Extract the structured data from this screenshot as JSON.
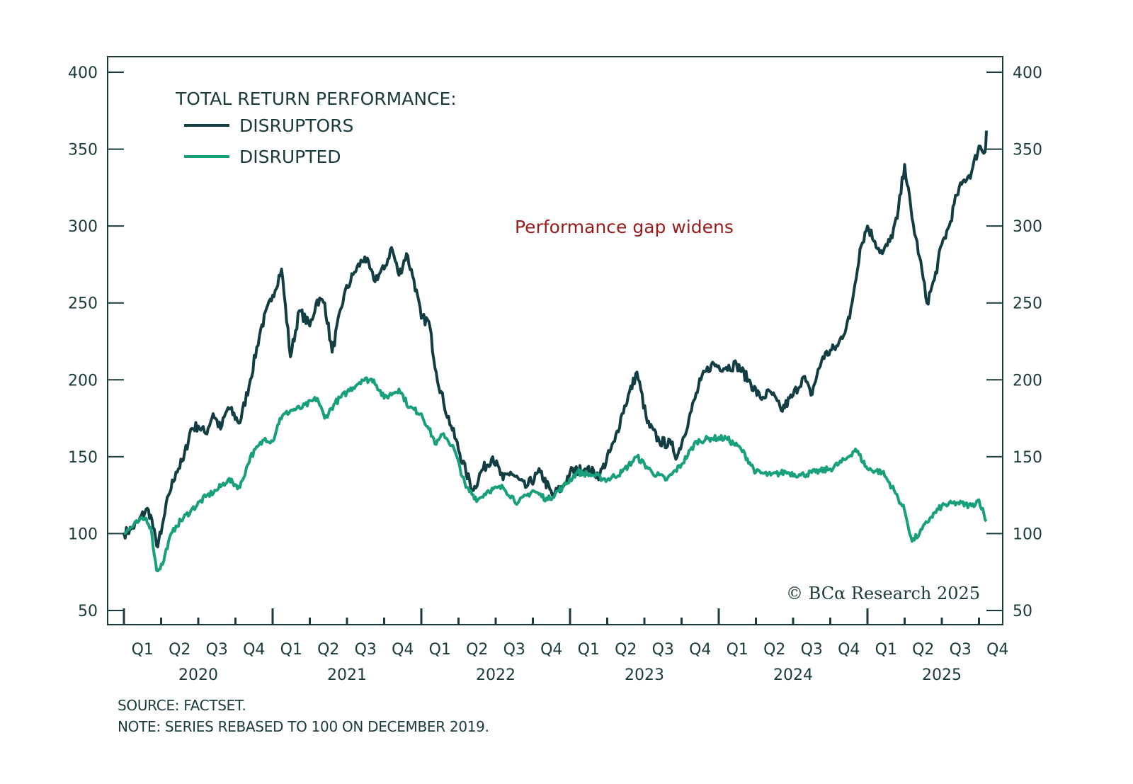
{
  "chart_data": {
    "type": "line",
    "title": "TOTAL RETURN PERFORMANCE:",
    "annotation": "Performance gap widens",
    "copyright": "© BCα Research 2025",
    "source": "SOURCE: FACTSET.",
    "note": "NOTE: SERIES REBASED TO 100 ON DECEMBER 2019.",
    "ylim": [
      50,
      400
    ],
    "yticks": [
      50,
      100,
      150,
      200,
      250,
      300,
      350,
      400
    ],
    "yticks_right": [
      50,
      100,
      150,
      200,
      250,
      300,
      350,
      400
    ],
    "xlim": [
      "2020-Q1",
      "2025-Q4"
    ],
    "quarter_labels": [
      "Q1",
      "Q2",
      "Q3",
      "Q4",
      "Q1",
      "Q2",
      "Q3",
      "Q4",
      "Q1",
      "Q2",
      "Q3",
      "Q4",
      "Q1",
      "Q2",
      "Q3",
      "Q4",
      "Q1",
      "Q2",
      "Q3",
      "Q4",
      "Q1",
      "Q2",
      "Q3",
      "Q4"
    ],
    "year_labels": [
      "2020",
      "2021",
      "2022",
      "2023",
      "2024",
      "2025"
    ],
    "grid": false,
    "legend": "top-left",
    "x_unit": "years since start of 2020",
    "series": [
      {
        "name": "DISRUPTORS",
        "color": "#123d42",
        "points": [
          [
            0.0,
            100
          ],
          [
            0.05,
            103
          ],
          [
            0.1,
            108
          ],
          [
            0.15,
            116
          ],
          [
            0.18,
            112
          ],
          [
            0.22,
            92
          ],
          [
            0.25,
            100
          ],
          [
            0.3,
            125
          ],
          [
            0.35,
            140
          ],
          [
            0.4,
            148
          ],
          [
            0.45,
            168
          ],
          [
            0.5,
            170
          ],
          [
            0.55,
            165
          ],
          [
            0.6,
            178
          ],
          [
            0.65,
            168
          ],
          [
            0.7,
            182
          ],
          [
            0.78,
            172
          ],
          [
            0.85,
            200
          ],
          [
            0.92,
            233
          ],
          [
            1.0,
            255
          ],
          [
            1.06,
            272
          ],
          [
            1.12,
            215
          ],
          [
            1.18,
            245
          ],
          [
            1.25,
            235
          ],
          [
            1.3,
            252
          ],
          [
            1.35,
            250
          ],
          [
            1.4,
            218
          ],
          [
            1.48,
            255
          ],
          [
            1.55,
            270
          ],
          [
            1.62,
            280
          ],
          [
            1.68,
            265
          ],
          [
            1.75,
            272
          ],
          [
            1.8,
            286
          ],
          [
            1.85,
            268
          ],
          [
            1.9,
            282
          ],
          [
            1.95,
            265
          ],
          [
            2.0,
            240
          ],
          [
            2.05,
            238
          ],
          [
            2.1,
            205
          ],
          [
            2.15,
            185
          ],
          [
            2.2,
            170
          ],
          [
            2.3,
            140
          ],
          [
            2.35,
            128
          ],
          [
            2.4,
            140
          ],
          [
            2.48,
            150
          ],
          [
            2.55,
            135
          ],
          [
            2.6,
            140
          ],
          [
            2.7,
            130
          ],
          [
            2.8,
            140
          ],
          [
            2.88,
            125
          ],
          [
            2.95,
            130
          ],
          [
            3.0,
            140
          ],
          [
            3.1,
            142
          ],
          [
            3.2,
            138
          ],
          [
            3.3,
            160
          ],
          [
            3.35,
            178
          ],
          [
            3.45,
            205
          ],
          [
            3.52,
            172
          ],
          [
            3.6,
            160
          ],
          [
            3.68,
            158
          ],
          [
            3.72,
            150
          ],
          [
            3.8,
            175
          ],
          [
            3.88,
            200
          ],
          [
            3.95,
            210
          ],
          [
            4.05,
            208
          ],
          [
            4.12,
            210
          ],
          [
            4.2,
            200
          ],
          [
            4.28,
            188
          ],
          [
            4.35,
            192
          ],
          [
            4.42,
            180
          ],
          [
            4.5,
            190
          ],
          [
            4.57,
            202
          ],
          [
            4.62,
            190
          ],
          [
            4.7,
            215
          ],
          [
            4.8,
            222
          ],
          [
            4.88,
            240
          ],
          [
            4.95,
            285
          ],
          [
            5.0,
            300
          ],
          [
            5.05,
            290
          ],
          [
            5.1,
            282
          ],
          [
            5.15,
            290
          ],
          [
            5.2,
            305
          ],
          [
            5.25,
            340
          ],
          [
            5.3,
            305
          ],
          [
            5.35,
            280
          ],
          [
            5.4,
            250
          ],
          [
            5.45,
            265
          ],
          [
            5.5,
            288
          ],
          [
            5.55,
            300
          ],
          [
            5.6,
            320
          ],
          [
            5.65,
            330
          ],
          [
            5.7,
            335
          ],
          [
            5.75,
            352
          ],
          [
            5.79,
            348
          ],
          [
            5.8,
            362
          ]
        ]
      },
      {
        "name": "DISRUPTED",
        "color": "#17a07b",
        "points": [
          [
            0.0,
            100
          ],
          [
            0.05,
            104
          ],
          [
            0.1,
            108
          ],
          [
            0.15,
            110
          ],
          [
            0.18,
            104
          ],
          [
            0.22,
            76
          ],
          [
            0.26,
            80
          ],
          [
            0.3,
            95
          ],
          [
            0.35,
            105
          ],
          [
            0.45,
            115
          ],
          [
            0.55,
            124
          ],
          [
            0.62,
            128
          ],
          [
            0.7,
            135
          ],
          [
            0.78,
            130
          ],
          [
            0.85,
            150
          ],
          [
            0.95,
            162
          ],
          [
            1.0,
            160
          ],
          [
            1.05,
            175
          ],
          [
            1.12,
            180
          ],
          [
            1.2,
            182
          ],
          [
            1.3,
            188
          ],
          [
            1.35,
            175
          ],
          [
            1.42,
            185
          ],
          [
            1.5,
            192
          ],
          [
            1.6,
            200
          ],
          [
            1.68,
            200
          ],
          [
            1.75,
            188
          ],
          [
            1.85,
            194
          ],
          [
            1.92,
            182
          ],
          [
            2.0,
            178
          ],
          [
            2.05,
            168
          ],
          [
            2.1,
            158
          ],
          [
            2.15,
            165
          ],
          [
            2.22,
            155
          ],
          [
            2.3,
            130
          ],
          [
            2.38,
            122
          ],
          [
            2.45,
            128
          ],
          [
            2.55,
            130
          ],
          [
            2.65,
            120
          ],
          [
            2.75,
            128
          ],
          [
            2.85,
            122
          ],
          [
            2.95,
            130
          ],
          [
            3.05,
            140
          ],
          [
            3.15,
            138
          ],
          [
            3.25,
            135
          ],
          [
            3.35,
            140
          ],
          [
            3.45,
            150
          ],
          [
            3.55,
            140
          ],
          [
            3.65,
            135
          ],
          [
            3.75,
            145
          ],
          [
            3.85,
            160
          ],
          [
            3.95,
            162
          ],
          [
            4.05,
            162
          ],
          [
            4.15,
            155
          ],
          [
            4.25,
            140
          ],
          [
            4.35,
            138
          ],
          [
            4.45,
            140
          ],
          [
            4.55,
            138
          ],
          [
            4.65,
            140
          ],
          [
            4.75,
            142
          ],
          [
            4.85,
            148
          ],
          [
            4.92,
            155
          ],
          [
            5.0,
            142
          ],
          [
            5.1,
            140
          ],
          [
            5.18,
            128
          ],
          [
            5.25,
            115
          ],
          [
            5.3,
            95
          ],
          [
            5.35,
            100
          ],
          [
            5.42,
            110
          ],
          [
            5.5,
            118
          ],
          [
            5.6,
            120
          ],
          [
            5.7,
            118
          ],
          [
            5.75,
            122
          ],
          [
            5.8,
            108
          ]
        ]
      }
    ]
  }
}
